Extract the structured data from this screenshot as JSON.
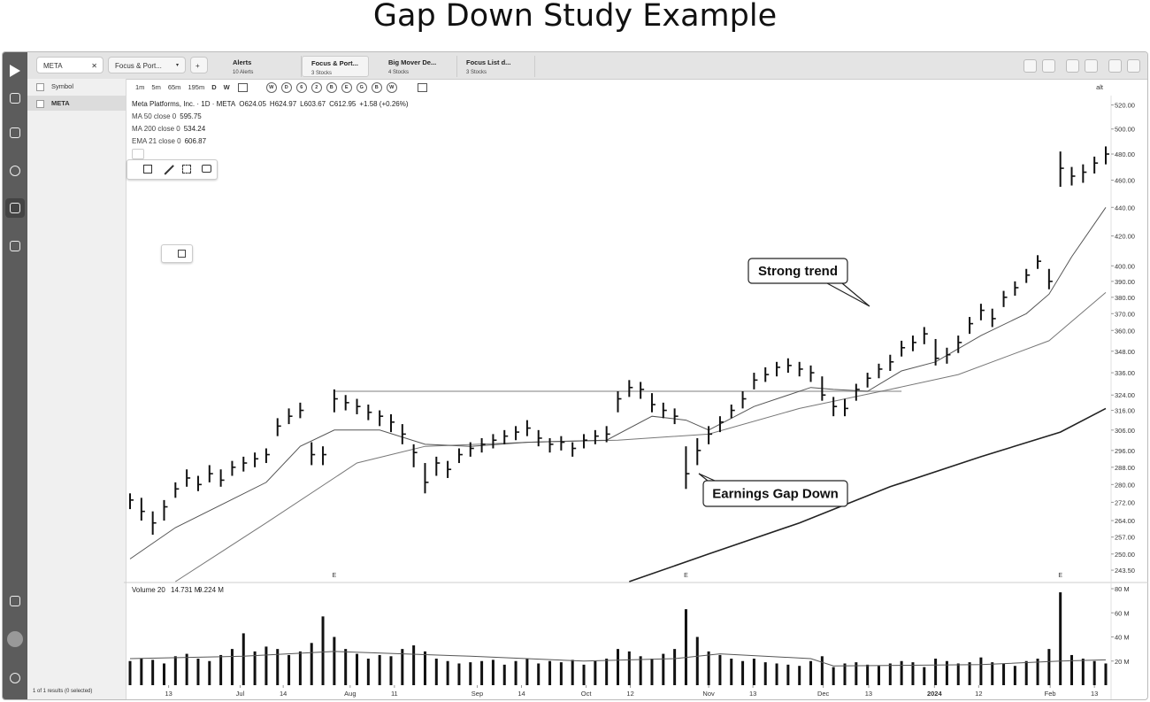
{
  "title": "Gap Down Study Example",
  "tabs": {
    "symbol_tab": "META",
    "list_tab": "Focus & Port...",
    "groups": [
      {
        "name": "Alerts",
        "count": "10 Alerts"
      },
      {
        "name": "Focus & Port...",
        "count": "3 Stocks"
      },
      {
        "name": "Big Mover De...",
        "count": "4 Stocks"
      },
      {
        "name": "Focus List d...",
        "count": "3 Stocks"
      }
    ]
  },
  "toolbar": {
    "symbol": "Symbol",
    "timeframes": [
      "1m",
      "5m",
      "65m",
      "195m",
      "D",
      "W"
    ],
    "study_buttons": [
      "W",
      "D",
      "6",
      "2",
      "B",
      "E",
      "G",
      "B",
      "W"
    ],
    "alt": "alt"
  },
  "watchlist": {
    "rows": [
      "META"
    ],
    "footer": "1 of 1 results (0 selected)"
  },
  "chart_data": [
    {
      "type": "ohlc",
      "header": "Meta Platforms, Inc. · 1D · META",
      "quote": [
        "O624.05",
        "H624.97",
        "L603.67",
        "C612.95",
        "+1.58 (+0.26%)"
      ],
      "log_scale": true,
      "color": "#111111",
      "high": [
        276,
        274,
        268,
        273,
        281,
        287,
        284,
        289,
        287,
        291,
        293,
        295,
        297,
        312,
        317,
        320,
        300,
        298,
        327,
        324,
        322,
        319,
        316,
        314,
        309,
        299,
        290,
        293,
        291,
        297,
        300,
        302,
        304,
        306,
        308,
        311,
        306,
        302,
        303,
        300,
        304,
        306,
        308,
        326,
        332,
        331,
        325,
        320,
        317,
        298,
        302,
        308,
        313,
        319,
        326,
        336,
        339,
        342,
        344,
        342,
        340,
        334,
        323,
        322,
        330,
        336,
        341,
        346,
        354,
        357,
        362,
        355,
        350,
        357,
        368,
        376,
        373,
        384,
        390,
        398,
        407,
        398,
        482,
        470,
        472,
        478,
        486
      ],
      "low": [
        269,
        264,
        258,
        264,
        274,
        279,
        277,
        281,
        279,
        284,
        286,
        288,
        290,
        303,
        309,
        312,
        289,
        289,
        315,
        316,
        314,
        311,
        308,
        305,
        299,
        288,
        276,
        284,
        283,
        290,
        293,
        295,
        297,
        299,
        301,
        303,
        298,
        295,
        296,
        293,
        297,
        299,
        300,
        315,
        323,
        322,
        315,
        312,
        309,
        278,
        289,
        299,
        305,
        312,
        317,
        327,
        331,
        334,
        336,
        334,
        331,
        321,
        313,
        313,
        321,
        328,
        333,
        337,
        345,
        348,
        352,
        340,
        341,
        347,
        358,
        366,
        362,
        374,
        381,
        389,
        398,
        385,
        455,
        456,
        458,
        465,
        472
      ],
      "close": [
        273,
        268,
        263,
        270,
        278,
        283,
        280,
        285,
        282,
        288,
        290,
        292,
        294,
        308,
        313,
        316,
        294,
        294,
        322,
        320,
        318,
        315,
        313,
        310,
        304,
        295,
        281,
        290,
        287,
        294,
        297,
        299,
        301,
        303,
        305,
        307,
        302,
        299,
        300,
        297,
        301,
        303,
        304,
        322,
        328,
        327,
        319,
        316,
        313,
        285,
        296,
        304,
        310,
        316,
        322,
        332,
        335,
        339,
        340,
        338,
        336,
        324,
        318,
        317,
        327,
        333,
        338,
        342,
        350,
        353,
        358,
        344,
        346,
        353,
        364,
        372,
        367,
        380,
        386,
        394,
        403,
        390,
        469,
        463,
        466,
        473,
        480
      ],
      "lines": [
        {
          "name": "MA 50 close 0",
          "last": 595.75,
          "color": "#777777",
          "x": [
            4,
            12,
            20,
            26,
            35,
            43,
            51,
            59,
            67,
            73,
            81,
            86
          ],
          "values": [
            239,
            263,
            290,
            298,
            300,
            301,
            304,
            317,
            327,
            335,
            354,
            383
          ]
        },
        {
          "name": "MA 200 close 0",
          "last": 534.24,
          "color": "#222222",
          "x": [
            44,
            51,
            59,
            67,
            75,
            82,
            86
          ],
          "values": [
            239,
            250,
            263,
            279,
            293,
            305,
            317
          ]
        },
        {
          "name": "EMA 21 close 0",
          "last": 606.87,
          "color": "#555555",
          "x": [
            0,
            4,
            12,
            15,
            18,
            22,
            26,
            30,
            35,
            42,
            46,
            49,
            51,
            55,
            60,
            62,
            65,
            68,
            71,
            75,
            79,
            81,
            83,
            86
          ],
          "values": [
            248,
            261,
            281,
            298,
            306,
            306,
            299,
            298,
            300,
            301,
            313,
            311,
            306,
            318,
            328,
            327,
            326,
            337,
            342,
            357,
            370,
            382,
            406,
            440
          ]
        }
      ],
      "level": {
        "x": [
          18,
          68
        ],
        "value": 326
      },
      "markers": {
        "x": [
          18,
          49,
          82
        ],
        "labels": [
          "E",
          "E",
          "E"
        ]
      },
      "annotations": [
        "Strong trend",
        "Earnings Gap Down"
      ],
      "xlim": [
        -0.5,
        86.5
      ],
      "ylim": [
        239,
        528
      ],
      "yticks": [
        {
          "value": 520,
          "label": "520.00"
        },
        {
          "value": 500,
          "label": "500.00"
        },
        {
          "value": 480,
          "label": "480.00"
        },
        {
          "value": 460,
          "label": "460.00"
        },
        {
          "value": 440,
          "label": "440.00"
        },
        {
          "value": 420,
          "label": "420.00"
        },
        {
          "value": 400,
          "label": "400.00"
        },
        {
          "value": 390,
          "label": "390.00"
        },
        {
          "value": 380,
          "label": "380.00"
        },
        {
          "value": 370,
          "label": "370.00"
        },
        {
          "value": 360,
          "label": "360.00"
        },
        {
          "value": 348,
          "label": "348.00"
        },
        {
          "value": 336,
          "label": "336.00"
        },
        {
          "value": 324,
          "label": "324.00"
        },
        {
          "value": 316,
          "label": "316.00"
        },
        {
          "value": 306,
          "label": "306.00"
        },
        {
          "value": 296,
          "label": "296.00"
        },
        {
          "value": 288,
          "label": "288.00"
        },
        {
          "value": 280,
          "label": "280.00"
        },
        {
          "value": 272,
          "label": "272.00"
        },
        {
          "value": 264,
          "label": "264.00"
        },
        {
          "value": 257,
          "label": "257.00"
        },
        {
          "value": 250,
          "label": "250.00"
        },
        {
          "value": 243.5,
          "label": "243.50"
        }
      ]
    },
    {
      "type": "bar",
      "header": "Volume 20",
      "header_values": [
        "14.731 M",
        "9.224 M"
      ],
      "color": "#111111",
      "values": [
        20,
        22,
        21,
        18,
        24,
        26,
        22,
        20,
        25,
        30,
        43,
        28,
        32,
        30,
        25,
        28,
        35,
        57,
        40,
        30,
        26,
        22,
        25,
        24,
        30,
        33,
        28,
        22,
        20,
        18,
        19,
        20,
        21,
        17,
        20,
        22,
        18,
        20,
        19,
        21,
        17,
        20,
        22,
        30,
        28,
        24,
        22,
        26,
        30,
        63,
        40,
        28,
        25,
        22,
        20,
        22,
        19,
        18,
        17,
        16,
        20,
        24,
        15,
        18,
        19,
        17,
        16,
        18,
        20,
        19,
        15,
        22,
        20,
        18,
        19,
        23,
        19,
        18,
        16,
        20,
        22,
        30,
        77,
        25,
        22,
        20,
        18
      ],
      "average": {
        "color": "#555555",
        "x": [
          0,
          10,
          18,
          30,
          40,
          48,
          52,
          60,
          62,
          75,
          82,
          86
        ],
        "values": [
          22,
          24,
          28,
          24,
          20,
          22,
          26,
          22,
          16,
          17,
          20,
          21
        ]
      },
      "xlim": [
        -0.5,
        86.5
      ],
      "ylim": [
        0,
        80
      ],
      "yticks": [
        {
          "value": 80,
          "label": "80 M"
        },
        {
          "value": 60,
          "label": "60 M"
        },
        {
          "value": 40,
          "label": "40 M"
        },
        {
          "value": 20,
          "label": "20 M"
        }
      ],
      "xticks": [
        {
          "value": 3.4,
          "label": "13"
        },
        {
          "value": 9.7,
          "label": "Jul"
        },
        {
          "value": 13.5,
          "label": "14"
        },
        {
          "value": 19.4,
          "label": "Aug"
        },
        {
          "value": 23.3,
          "label": "11"
        },
        {
          "value": 30.6,
          "label": "Sep"
        },
        {
          "value": 34.5,
          "label": "14"
        },
        {
          "value": 40.2,
          "label": "Oct"
        },
        {
          "value": 44.1,
          "label": "12"
        },
        {
          "value": 51.0,
          "label": "Nov"
        },
        {
          "value": 54.9,
          "label": "13"
        },
        {
          "value": 61.1,
          "label": "Dec"
        },
        {
          "value": 65.1,
          "label": "13"
        },
        {
          "value": 70.9,
          "label": "2024"
        },
        {
          "value": 74.8,
          "label": "12"
        },
        {
          "value": 81.1,
          "label": "Feb"
        },
        {
          "value": 85.0,
          "label": "13"
        }
      ]
    }
  ]
}
